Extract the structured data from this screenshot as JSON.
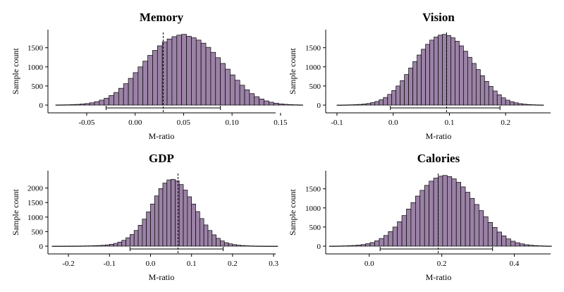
{
  "colors": {
    "bar_fill": "#9b82a6",
    "bar_stroke": "#000000"
  },
  "chart_data": [
    {
      "type": "bar",
      "title": "Memory",
      "xlabel": "M-ratio",
      "ylabel": "Sample count",
      "xlim": [
        -0.09,
        0.145
      ],
      "ylim": [
        0,
        1900
      ],
      "xticks": [
        -0.05,
        0.0,
        0.05,
        0.1,
        0.15
      ],
      "xtick_labels": [
        "-0.05",
        "0.00",
        "0.05",
        "0.10",
        "0.15"
      ],
      "yticks": [
        0,
        500,
        1000,
        1500
      ],
      "yticks_labels": [
        "0",
        "500",
        "1000",
        "1500"
      ],
      "mean": 0.029,
      "ci": [
        -0.03,
        0.088
      ],
      "bin_start": -0.082,
      "bin_width": 0.005,
      "values": [
        4,
        6,
        8,
        12,
        18,
        28,
        40,
        60,
        90,
        130,
        180,
        250,
        330,
        440,
        560,
        700,
        850,
        1000,
        1150,
        1300,
        1430,
        1550,
        1650,
        1730,
        1790,
        1830,
        1850,
        1800,
        1760,
        1700,
        1620,
        1510,
        1380,
        1240,
        1090,
        940,
        790,
        650,
        520,
        400,
        300,
        220,
        160,
        110,
        75,
        50,
        32,
        20,
        12,
        8,
        5
      ]
    },
    {
      "type": "bar",
      "title": "Vision",
      "xlabel": "M-ratio",
      "ylabel": "Sample count",
      "xlim": [
        -0.12,
        0.28
      ],
      "ylim": [
        0,
        1900
      ],
      "xticks": [
        -0.1,
        0.0,
        0.1,
        0.2
      ],
      "xtick_labels": [
        "-0.1",
        "0.0",
        "0.1",
        "0.2"
      ],
      "yticks": [
        0,
        500,
        1000,
        1500
      ],
      "yticks_labels": [
        "0",
        "500",
        "1000",
        "1500"
      ],
      "mean": 0.095,
      "ci": [
        -0.005,
        0.19
      ],
      "bin_start": -0.1,
      "bin_width": 0.0075,
      "values": [
        2,
        3,
        5,
        8,
        12,
        18,
        28,
        42,
        65,
        95,
        140,
        200,
        280,
        380,
        500,
        640,
        800,
        970,
        1140,
        1310,
        1460,
        1590,
        1700,
        1780,
        1830,
        1850,
        1820,
        1760,
        1670,
        1550,
        1410,
        1250,
        1090,
        930,
        770,
        620,
        490,
        370,
        270,
        190,
        130,
        90,
        60,
        38,
        24,
        15,
        9,
        5,
        3
      ]
    },
    {
      "type": "bar",
      "title": "GDP",
      "xlabel": "M-ratio",
      "ylabel": "Sample count",
      "xlim": [
        -0.25,
        0.305
      ],
      "ylim": [
        0,
        2500
      ],
      "xticks": [
        -0.2,
        -0.1,
        0.0,
        0.1,
        0.2,
        0.3
      ],
      "xtick_labels": [
        "-0.2",
        "-0.1",
        "0.0",
        "0.1",
        "0.2",
        "0.3"
      ],
      "yticks": [
        0,
        500,
        1000,
        1500,
        2000
      ],
      "yticks_labels": [
        "0",
        "500",
        "1000",
        "1500",
        "2000"
      ],
      "mean": 0.067,
      "ci": [
        -0.05,
        0.177
      ],
      "bin_start": -0.24,
      "bin_width": 0.01,
      "values": [
        1,
        1,
        2,
        2,
        3,
        4,
        5,
        7,
        9,
        12,
        16,
        22,
        30,
        45,
        65,
        95,
        140,
        200,
        290,
        400,
        540,
        720,
        930,
        1180,
        1450,
        1730,
        1980,
        2170,
        2280,
        2300,
        2250,
        2120,
        1930,
        1700,
        1450,
        1190,
        950,
        730,
        540,
        390,
        270,
        180,
        120,
        80,
        52,
        33,
        21,
        13,
        8,
        5,
        3,
        2,
        1,
        1,
        1
      ]
    },
    {
      "type": "bar",
      "title": "Calories",
      "xlabel": "M-ratio",
      "ylabel": "Sample count",
      "xlim": [
        -0.12,
        0.5
      ],
      "ylim": [
        0,
        1900
      ],
      "xticks": [
        0.0,
        0.2,
        0.4
      ],
      "xtick_labels": [
        "0.0",
        "0.2",
        "0.4"
      ],
      "yticks": [
        0,
        500,
        1000,
        1500
      ],
      "yticks_labels": [
        "0",
        "500",
        "1000",
        "1500"
      ],
      "mean": 0.19,
      "ci": [
        0.03,
        0.34
      ],
      "bin_start": -0.11,
      "bin_width": 0.0125,
      "values": [
        2,
        3,
        5,
        8,
        12,
        18,
        28,
        42,
        65,
        95,
        140,
        200,
        280,
        380,
        500,
        640,
        800,
        970,
        1140,
        1310,
        1460,
        1590,
        1700,
        1780,
        1830,
        1850,
        1820,
        1760,
        1670,
        1550,
        1410,
        1250,
        1090,
        930,
        770,
        620,
        490,
        370,
        270,
        190,
        130,
        90,
        60,
        38,
        24,
        15,
        9,
        5,
        3
      ]
    }
  ]
}
